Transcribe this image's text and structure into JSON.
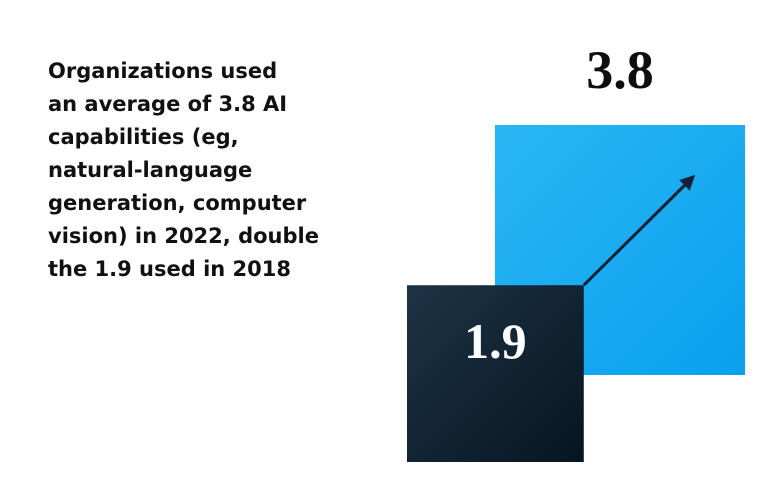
{
  "chart_data": {
    "type": "square-area",
    "annotation_lines": [
      "Organizations used",
      "an average of 3.8 AI",
      "capabilities (eg,",
      "natural-language",
      "generation, computer",
      "vision) in 2022, double",
      "the 1.9 used in 2018"
    ],
    "values": [
      1.9,
      3.8
    ],
    "colors": [
      "#0e2234",
      "#12a8f2"
    ]
  }
}
